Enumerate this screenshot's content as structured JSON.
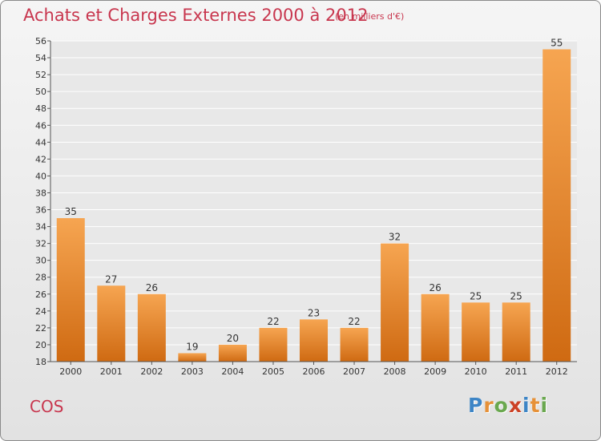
{
  "title": "Achats et Charges Externes 2000 à 2012",
  "subtitle": "(en milliers d'€)",
  "commune": "COS",
  "brand": {
    "letters": [
      "P",
      "r",
      "o",
      "x",
      "i",
      "t",
      "i"
    ],
    "colors": [
      "#3d85c6",
      "#e69138",
      "#6aa84f",
      "#cc4125",
      "#3d85c6",
      "#e69138",
      "#6aa84f"
    ]
  },
  "colors": {
    "title": "#c8364e",
    "bar_top": "#f6a551",
    "bar_bottom": "#cf6a12",
    "plot_bg": "#e8e8e8",
    "grid": "#ffffff"
  },
  "chart_data": {
    "type": "bar",
    "categories": [
      "2000",
      "2001",
      "2002",
      "2003",
      "2004",
      "2005",
      "2006",
      "2007",
      "2008",
      "2009",
      "2010",
      "2011",
      "2012"
    ],
    "values": [
      35,
      27,
      26,
      19,
      20,
      22,
      23,
      22,
      32,
      26,
      25,
      25,
      55
    ],
    "ylim": [
      18,
      56
    ],
    "ytick_step": 2,
    "grid": true,
    "data_labels": true
  }
}
